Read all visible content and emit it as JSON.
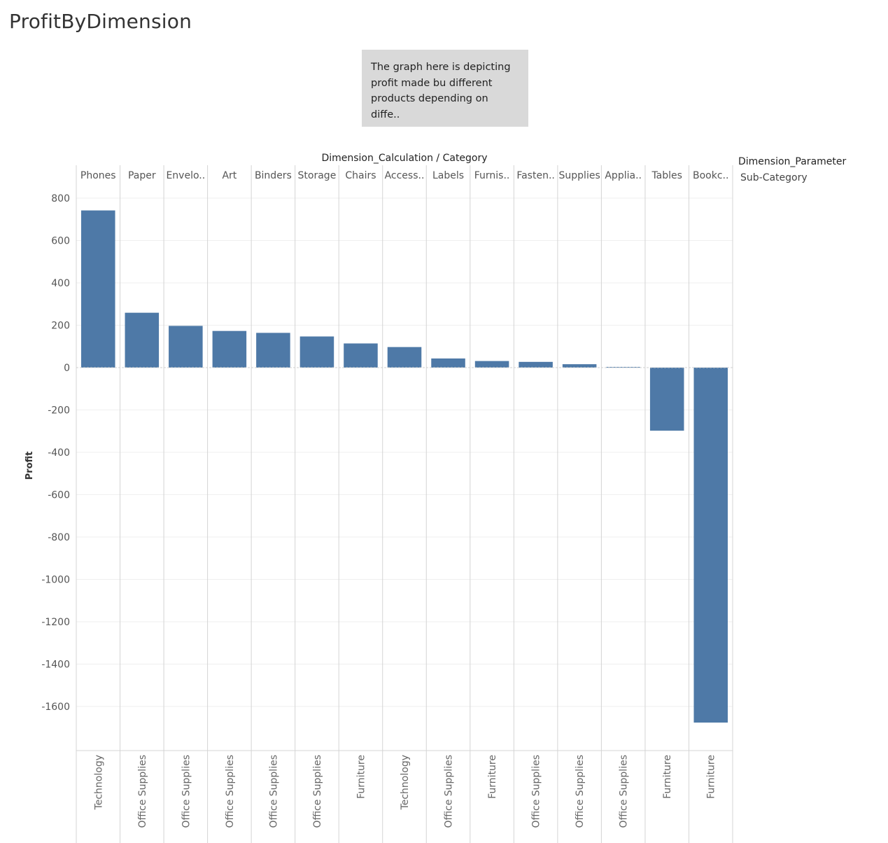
{
  "page": {
    "title": "ProfitByDimension",
    "annotation": "The graph here is depicting\nprofit made bu different\nproducts depending on diffe.."
  },
  "chart_data": {
    "type": "bar",
    "header_title": "Dimension_Calculation / Category",
    "legend_title": "Dimension_Parameter",
    "legend_value": "Sub-Category",
    "ylabel": "Profit",
    "ylim": [
      -1700,
      850
    ],
    "yticks": [
      800,
      600,
      400,
      200,
      0,
      -200,
      -400,
      -600,
      -800,
      -1000,
      -1200,
      -1400,
      -1600
    ],
    "bar_color": "#4e79a7",
    "categories": [
      "Phones",
      "Paper",
      "Envelo..",
      "Art",
      "Binders",
      "Storage",
      "Chairs",
      "Access..",
      "Labels",
      "Furnis..",
      "Fasten..",
      "Supplies",
      "Applia..",
      "Tables",
      "Bookc.."
    ],
    "groups": [
      "Technology",
      "Office Supplies",
      "Office Supplies",
      "Office Supplies",
      "Office Supplies",
      "Office Supplies",
      "Furniture",
      "Technology",
      "Office Supplies",
      "Furniture",
      "Office Supplies",
      "Office Supplies",
      "Office Supplies",
      "Furniture",
      "Furniture"
    ],
    "values": [
      742,
      259,
      197,
      173,
      164,
      147,
      114,
      97,
      43,
      31,
      27,
      16,
      3,
      -298,
      -1676
    ]
  }
}
